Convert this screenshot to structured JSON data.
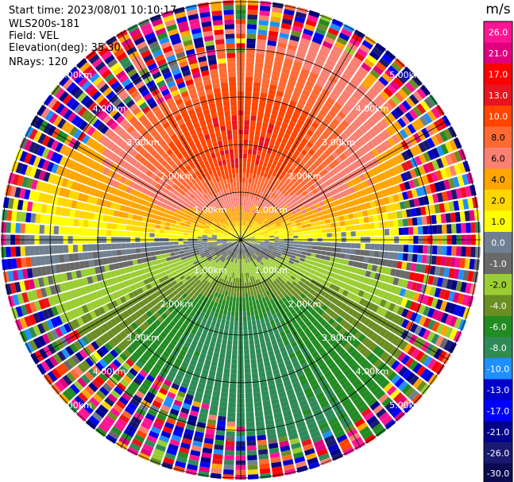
{
  "header": {
    "start_time": "Start time: 2023/08/01 10:10:17",
    "instrument": "WLS200s-181",
    "field": "Field: VEL",
    "elevation": "Elevation(deg): 35.30",
    "nrays": "NRays: 120"
  },
  "colorbar": {
    "unit": "m/s",
    "ticks": [
      "26.0",
      "21.0",
      "17.0",
      "13.0",
      "10.0",
      "8.0",
      "6.0",
      "4.0",
      "2.0",
      "1.0",
      "0.0",
      "-1.0",
      "-2.0",
      "-4.0",
      "-6.0",
      "-8.0",
      "-10.0",
      "-13.0",
      "-17.0",
      "-21.0",
      "-26.0",
      "-30.0"
    ],
    "colors": [
      "#ff1493",
      "#e0007f",
      "#ff0000",
      "#e8141f",
      "#ff4500",
      "#ff6a33",
      "#fa8072",
      "#ffa500",
      "#ffd700",
      "#ffff00",
      "#708090",
      "#696969",
      "#9acd32",
      "#6b8e23",
      "#228b22",
      "#2e8b57",
      "#1e90ff",
      "#0000cd",
      "#0000ff",
      "#00008b",
      "#191970",
      "#0a0a50"
    ]
  },
  "chart_data": {
    "type": "heatmap",
    "subtype": "polar-ppi",
    "field": "VEL",
    "unit": "m/s",
    "n_rays": 120,
    "range_rings_km": [
      1.0,
      2.0,
      3.0,
      4.0,
      5.0
    ],
    "range_ring_labels": [
      "1.00km",
      "2.00km",
      "3.00km",
      "4.00km",
      "5.00km"
    ],
    "value_range": [
      -30.0,
      26.0
    ],
    "pattern": {
      "description_values": "Radial velocity field: positive velocities (2 to 10 m/s) toward north, negative velocities (-2 to -10 m/s) toward south, near-zero band oriented east-west, noisy random values beyond ~4 km.",
      "positive_peak_ms": 10.0,
      "negative_peak_ms": -10.0
    }
  }
}
